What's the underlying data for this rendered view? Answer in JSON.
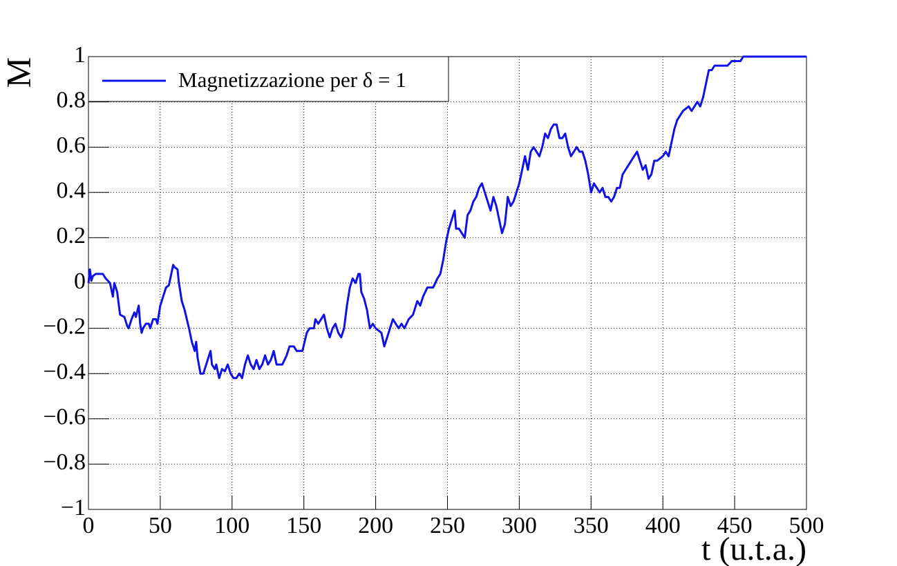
{
  "chart_data": {
    "type": "line",
    "x_label": "t (u.t.a.)",
    "y_label": "M",
    "x": [
      0,
      1,
      2,
      3,
      5,
      10,
      12,
      15,
      17,
      18,
      20,
      22,
      25,
      27,
      28,
      30,
      32,
      33,
      35,
      36,
      37,
      38,
      40,
      42,
      43,
      45,
      47,
      48,
      50,
      52,
      54,
      56,
      58,
      59,
      60,
      62,
      63,
      65,
      67,
      70,
      72,
      74,
      75,
      76,
      78,
      80,
      82,
      84,
      85,
      86,
      88,
      89,
      91,
      93,
      95,
      97,
      99,
      101,
      103,
      105,
      107,
      109,
      111,
      113,
      115,
      117,
      119,
      121,
      123,
      125,
      127,
      129,
      131,
      135,
      138,
      140,
      143,
      145,
      149,
      152,
      154,
      157,
      158,
      160,
      162,
      164,
      166,
      168,
      170,
      172,
      174,
      176,
      178,
      180,
      182,
      184,
      186,
      188,
      189,
      190,
      192,
      194,
      196,
      198,
      200,
      204,
      206,
      208,
      210,
      212,
      214,
      216,
      218,
      220,
      223,
      226,
      229,
      231,
      233,
      236,
      240,
      243,
      245,
      247,
      249,
      251,
      253,
      255,
      256,
      258,
      260,
      262,
      264,
      266,
      268,
      270,
      272,
      274,
      276,
      278,
      280,
      282,
      284,
      286,
      288,
      290,
      292,
      294,
      296,
      298,
      300,
      302,
      304,
      306,
      308,
      310,
      312,
      314,
      316,
      318,
      320,
      322,
      324,
      326,
      328,
      330,
      332,
      334,
      336,
      338,
      340,
      342,
      344,
      346,
      348,
      350,
      352,
      354,
      356,
      358,
      360,
      362,
      364,
      366,
      368,
      370,
      372,
      374,
      376,
      378,
      380,
      382,
      384,
      386,
      388,
      390,
      392,
      394,
      396,
      400,
      402,
      404,
      406,
      408,
      410,
      412,
      414,
      418,
      420,
      422,
      424,
      426,
      428,
      430,
      432,
      434,
      436,
      445,
      448,
      454,
      456,
      500
    ],
    "series": [
      {
        "name": "Magnetizzazione per δ = 1",
        "color": "#1010e8",
        "values": [
          0.0,
          0.06,
          0.01,
          0.03,
          0.04,
          0.04,
          0.02,
          0.0,
          -0.06,
          0.0,
          -0.04,
          -0.14,
          -0.15,
          -0.19,
          -0.2,
          -0.16,
          -0.13,
          -0.15,
          -0.1,
          -0.18,
          -0.22,
          -0.2,
          -0.18,
          -0.18,
          -0.2,
          -0.16,
          -0.16,
          -0.18,
          -0.1,
          -0.06,
          -0.02,
          -0.01,
          0.05,
          0.08,
          0.07,
          0.06,
          0.0,
          -0.08,
          -0.12,
          -0.2,
          -0.26,
          -0.3,
          -0.26,
          -0.33,
          -0.4,
          -0.4,
          -0.36,
          -0.32,
          -0.3,
          -0.36,
          -0.38,
          -0.36,
          -0.42,
          -0.38,
          -0.39,
          -0.36,
          -0.4,
          -0.42,
          -0.42,
          -0.4,
          -0.42,
          -0.36,
          -0.32,
          -0.36,
          -0.38,
          -0.34,
          -0.38,
          -0.36,
          -0.32,
          -0.36,
          -0.34,
          -0.3,
          -0.36,
          -0.36,
          -0.32,
          -0.28,
          -0.28,
          -0.3,
          -0.3,
          -0.22,
          -0.2,
          -0.2,
          -0.16,
          -0.18,
          -0.16,
          -0.14,
          -0.2,
          -0.24,
          -0.2,
          -0.18,
          -0.22,
          -0.24,
          -0.2,
          -0.1,
          -0.02,
          0.02,
          0.0,
          0.04,
          0.04,
          -0.04,
          -0.07,
          -0.12,
          -0.2,
          -0.18,
          -0.2,
          -0.22,
          -0.28,
          -0.24,
          -0.2,
          -0.16,
          -0.18,
          -0.2,
          -0.18,
          -0.2,
          -0.16,
          -0.14,
          -0.08,
          -0.1,
          -0.06,
          -0.02,
          -0.02,
          0.02,
          0.04,
          0.1,
          0.18,
          0.24,
          0.28,
          0.32,
          0.24,
          0.24,
          0.22,
          0.2,
          0.3,
          0.32,
          0.36,
          0.38,
          0.42,
          0.44,
          0.4,
          0.36,
          0.32,
          0.38,
          0.34,
          0.28,
          0.22,
          0.26,
          0.38,
          0.34,
          0.36,
          0.4,
          0.44,
          0.5,
          0.56,
          0.5,
          0.58,
          0.6,
          0.58,
          0.56,
          0.6,
          0.66,
          0.64,
          0.68,
          0.7,
          0.7,
          0.64,
          0.64,
          0.66,
          0.6,
          0.56,
          0.58,
          0.6,
          0.58,
          0.58,
          0.54,
          0.48,
          0.4,
          0.44,
          0.42,
          0.4,
          0.42,
          0.38,
          0.38,
          0.36,
          0.38,
          0.42,
          0.42,
          0.48,
          0.5,
          0.52,
          0.54,
          0.56,
          0.58,
          0.54,
          0.5,
          0.52,
          0.46,
          0.48,
          0.54,
          0.54,
          0.56,
          0.58,
          0.56,
          0.62,
          0.68,
          0.72,
          0.74,
          0.76,
          0.78,
          0.76,
          0.78,
          0.8,
          0.78,
          0.82,
          0.88,
          0.94,
          0.94,
          0.96,
          0.96,
          0.98,
          0.98,
          1.0,
          1.0
        ]
      }
    ],
    "xlim": [
      0,
      500
    ],
    "ylim": [
      -1,
      1
    ],
    "xticks": [
      0,
      50,
      100,
      150,
      200,
      250,
      300,
      350,
      400,
      450,
      500
    ],
    "yticks": [
      {
        "value": -1,
        "label": "−1"
      },
      {
        "value": -0.8,
        "label": "−0.8"
      },
      {
        "value": -0.6,
        "label": "−0.6"
      },
      {
        "value": -0.4,
        "label": "−0.4"
      },
      {
        "value": -0.2,
        "label": "−0.2"
      },
      0,
      0.2,
      0.4,
      0.6,
      0.8,
      1
    ],
    "grid": true,
    "legend": "top-left"
  }
}
